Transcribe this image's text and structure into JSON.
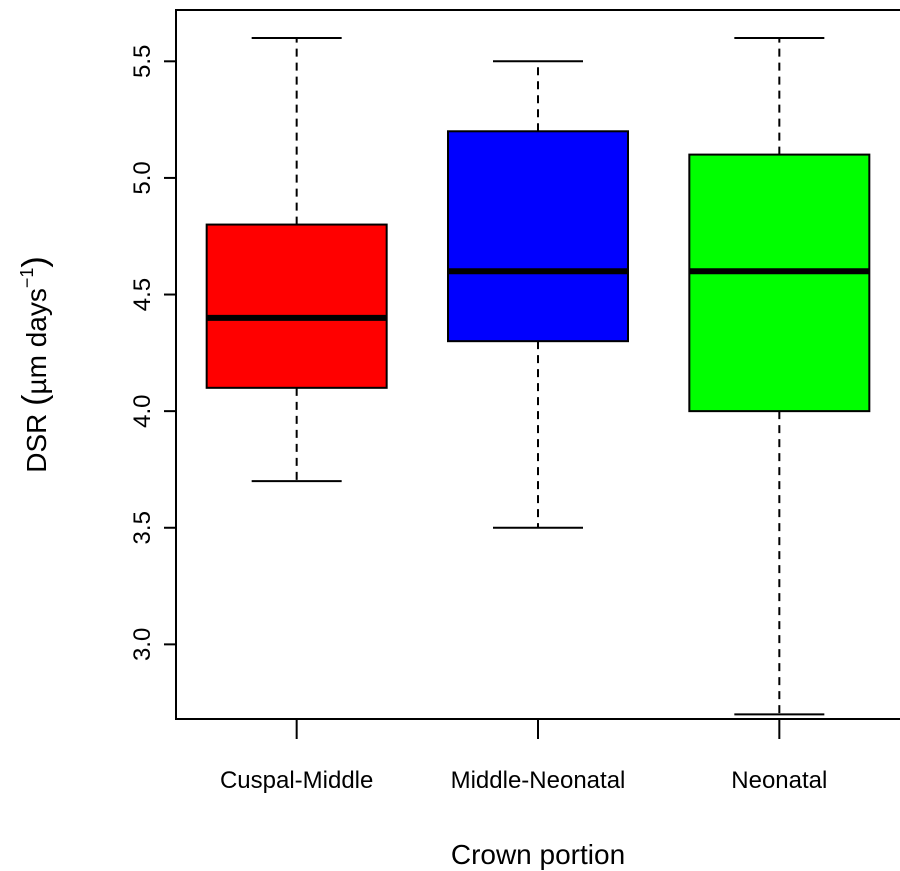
{
  "chart_data": {
    "type": "boxplot",
    "xlabel": "Crown portion",
    "ylabel": {
      "prefix": "DSR ",
      "unit_open": "(",
      "unit_main": "µm days",
      "unit_sup": "−1",
      "unit_close": ")"
    },
    "ylim": [
      2.68,
      5.72
    ],
    "yticks": [
      3.0,
      3.5,
      4.0,
      4.5,
      5.0,
      5.5
    ],
    "ytick_labels": [
      "3.0",
      "3.5",
      "4.0",
      "4.5",
      "5.0",
      "5.5"
    ],
    "grid": false,
    "legend": "none",
    "boxes": [
      {
        "category": "Cuspal-Middle",
        "min": 3.7,
        "q1": 4.1,
        "median": 4.4,
        "q3": 4.8,
        "max": 5.6,
        "color": "#ff0000"
      },
      {
        "category": "Middle-Neonatal",
        "min": 3.5,
        "q1": 4.3,
        "median": 4.6,
        "q3": 5.2,
        "max": 5.5,
        "color": "#0000ff"
      },
      {
        "category": "Neonatal",
        "min": 2.7,
        "q1": 4.0,
        "median": 4.6,
        "q3": 5.1,
        "max": 5.6,
        "color": "#00ff00"
      }
    ]
  }
}
